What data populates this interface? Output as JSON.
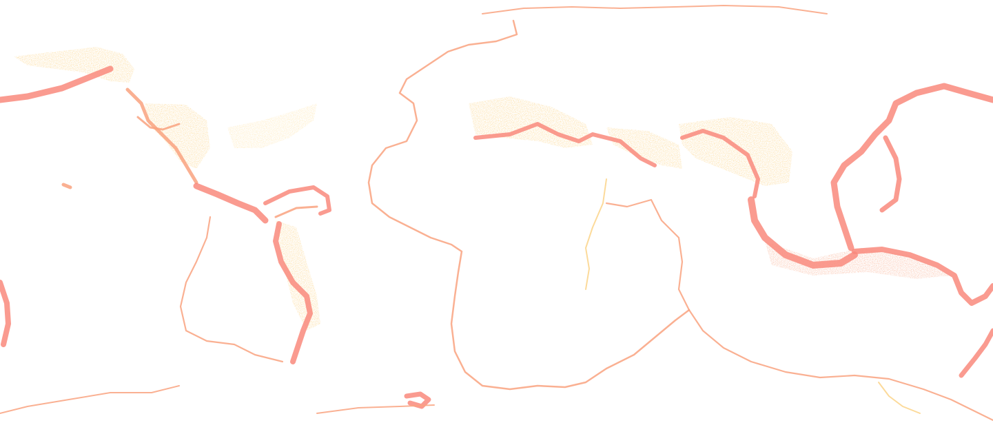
{
  "map": {
    "projection": "equirectangular",
    "layer": "earthquake-density",
    "background": "#ffffff",
    "colors": {
      "high": "#f98a7c",
      "mid": "#f9a27f",
      "low": "#fcd488",
      "sparse": "#fde4a8"
    }
  }
}
